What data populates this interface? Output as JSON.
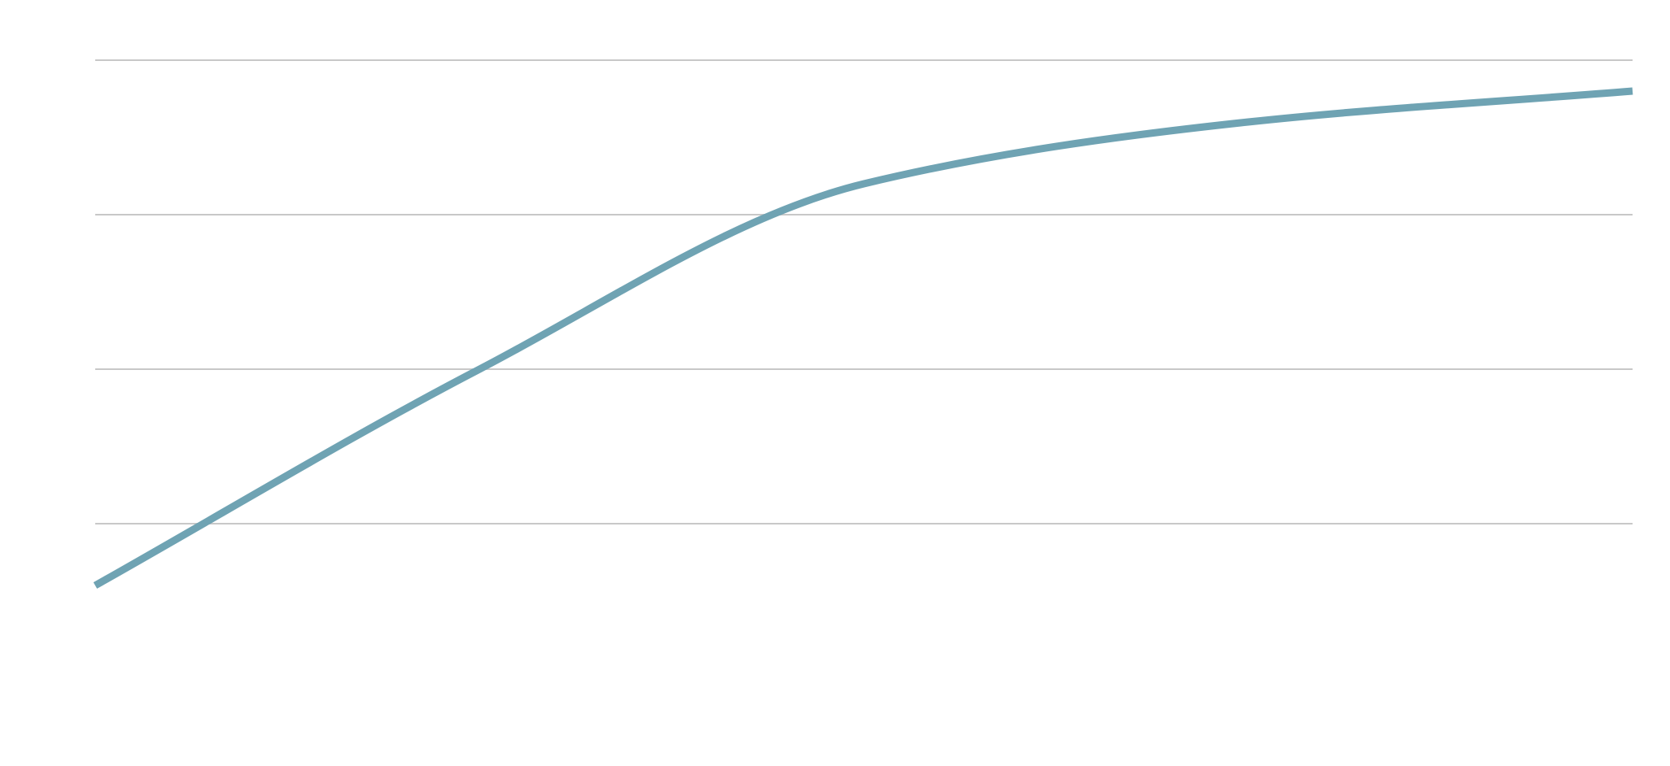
{
  "chart_data": {
    "type": "line",
    "title": "",
    "xlabel": "",
    "ylabel": "",
    "x": [
      0,
      1,
      2,
      3,
      4
    ],
    "series": [
      {
        "values": [
          -0.4,
          1.0,
          2.2,
          2.6,
          2.8
        ],
        "color": "#6fa3b3"
      }
    ],
    "ylim": [
      -1,
      3
    ],
    "xlim": [
      0,
      4
    ],
    "grid_y": [
      0,
      1,
      2,
      3
    ],
    "grid": true,
    "legend": "none"
  }
}
